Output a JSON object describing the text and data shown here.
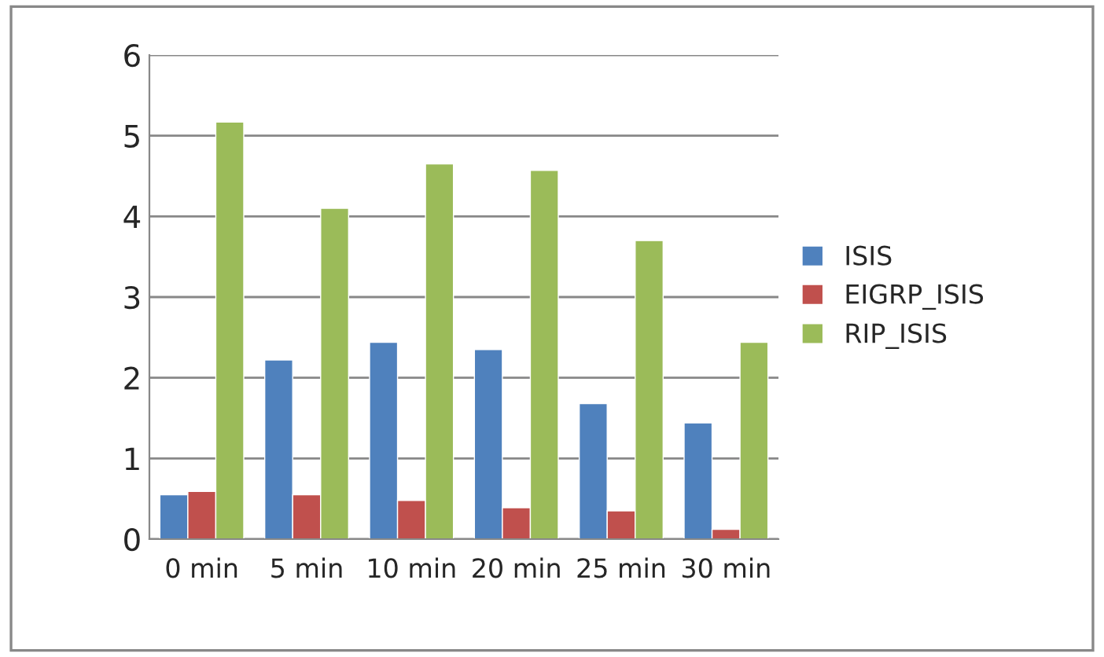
{
  "chart_data": {
    "type": "bar",
    "categories": [
      "0 min",
      "5 min",
      "10 min",
      "20 min",
      "25 min",
      "30 min"
    ],
    "series": [
      {
        "name": "ISIS",
        "color": "#4f81bd",
        "values": [
          0.55,
          2.22,
          2.44,
          2.35,
          1.68,
          1.44
        ]
      },
      {
        "name": "EIGRP_ISIS",
        "color": "#c0504d",
        "values": [
          0.59,
          0.55,
          0.48,
          0.39,
          0.35,
          0.12
        ]
      },
      {
        "name": "RIP_ISIS",
        "color": "#9bbb59",
        "values": [
          5.17,
          4.1,
          4.65,
          4.57,
          3.7,
          2.44
        ]
      }
    ],
    "ylim": [
      0,
      6
    ],
    "yticks": [
      0,
      1,
      2,
      3,
      4,
      5,
      6
    ],
    "grid": "y",
    "legend": "right"
  }
}
